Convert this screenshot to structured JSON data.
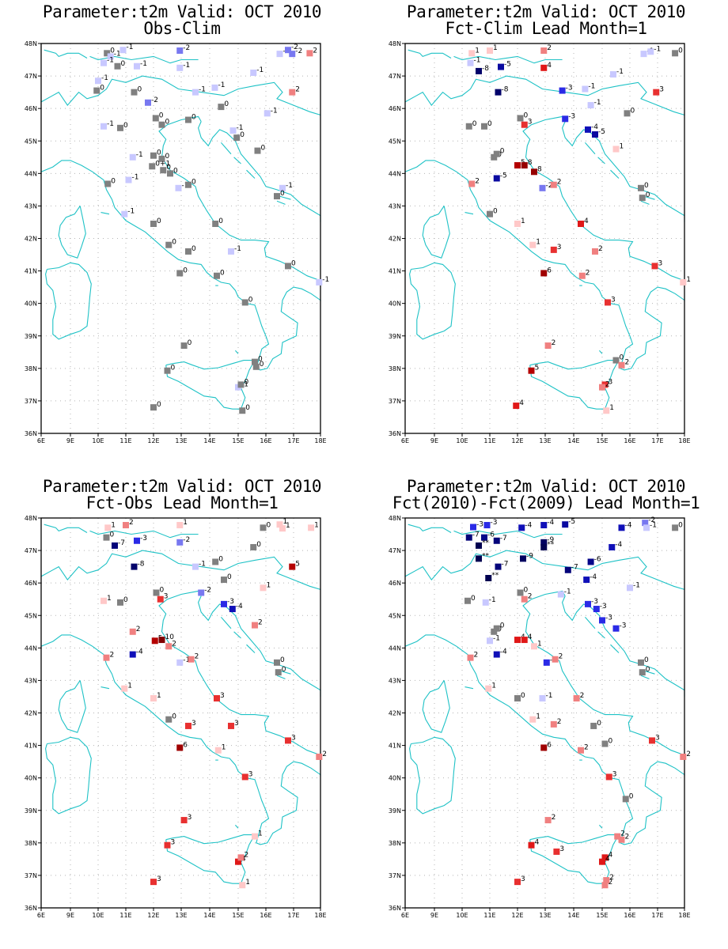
{
  "colors": {
    "coast": "#1ec2c6",
    "frame": "#000000",
    "grid": "#b4b4b4",
    "zero": "#808080",
    "neg": {
      "1": "#c8c8ff",
      "2": "#7878f0",
      "3": "#2a2ae6",
      "4": "#1010b8",
      "5": "#0a0aa0",
      "6": "#06068a",
      "7": "#04047a",
      "8": "#02026a",
      "9": "#000060",
      "**": "#000050"
    },
    "pos": {
      "1": "#ffc8c8",
      "2": "#f08080",
      "3": "#e83030",
      "4": "#e01818",
      "5": "#b40000",
      "6": "#a00000",
      "8": "#960000",
      "10": "#800000"
    }
  },
  "axes": {
    "lon_labels": [
      "6E",
      "9E",
      "10E",
      "11E",
      "12E",
      "13E",
      "14E",
      "15E",
      "16E",
      "17E",
      "18E"
    ],
    "lat_labels": [
      "48N",
      "47N",
      "46N",
      "45N",
      "44N",
      "43N",
      "42N",
      "41N",
      "40N",
      "39N",
      "38N",
      "37N",
      "36N"
    ]
  },
  "panels": [
    {
      "title1": "Parameter:t2m Valid: OCT 2010",
      "title2": "Obs-Clim",
      "stations": [
        [
          10.32,
          47.7,
          "0"
        ],
        [
          10.9,
          47.8,
          "-1"
        ],
        [
          10.45,
          47.6,
          "-1"
        ],
        [
          10.7,
          47.3,
          "0"
        ],
        [
          10.2,
          47.4,
          "-1"
        ],
        [
          11.4,
          47.3,
          "-1"
        ],
        [
          12.95,
          47.78,
          "-2"
        ],
        [
          12.95,
          47.25,
          "-1"
        ],
        [
          16.5,
          47.68,
          "-1"
        ],
        [
          16.8,
          47.8,
          "-2"
        ],
        [
          16.95,
          47.68,
          "-2"
        ],
        [
          17.6,
          47.7,
          "2"
        ],
        [
          15.55,
          47.1,
          "-1"
        ],
        [
          10.0,
          46.85,
          "-1"
        ],
        [
          9.95,
          46.55,
          "0"
        ],
        [
          11.3,
          46.5,
          "0"
        ],
        [
          11.8,
          46.18,
          "-2"
        ],
        [
          13.5,
          46.5,
          "-1"
        ],
        [
          14.18,
          46.64,
          "-1"
        ],
        [
          16.95,
          46.5,
          "2"
        ],
        [
          14.4,
          46.05,
          "0"
        ],
        [
          16.05,
          45.85,
          "-1"
        ],
        [
          10.2,
          45.45,
          "-1"
        ],
        [
          10.8,
          45.4,
          "0"
        ],
        [
          12.08,
          45.7,
          "0"
        ],
        [
          12.3,
          45.5,
          "0"
        ],
        [
          13.25,
          45.65,
          "0"
        ],
        [
          14.82,
          45.32,
          "-1"
        ],
        [
          14.95,
          45.1,
          "0"
        ],
        [
          15.7,
          44.7,
          "0"
        ],
        [
          11.25,
          44.5,
          "-1"
        ],
        [
          12.0,
          44.55,
          "0"
        ],
        [
          12.3,
          44.45,
          "0"
        ],
        [
          11.95,
          44.22,
          "0+1"
        ],
        [
          12.35,
          44.1,
          "0"
        ],
        [
          12.6,
          44.0,
          "0"
        ],
        [
          11.1,
          43.8,
          "-1"
        ],
        [
          10.35,
          43.68,
          "0"
        ],
        [
          12.9,
          43.55,
          "-1"
        ],
        [
          13.25,
          43.65,
          "0"
        ],
        [
          16.6,
          43.55,
          "-1"
        ],
        [
          16.4,
          43.3,
          "0"
        ],
        [
          10.95,
          42.75,
          "-1"
        ],
        [
          12.0,
          42.45,
          "0"
        ],
        [
          14.2,
          42.45,
          "0"
        ],
        [
          12.55,
          41.8,
          "0"
        ],
        [
          13.25,
          41.6,
          "0"
        ],
        [
          14.75,
          41.6,
          "-1"
        ],
        [
          16.8,
          41.15,
          "0"
        ],
        [
          12.95,
          40.93,
          "0"
        ],
        [
          14.25,
          40.85,
          "0"
        ],
        [
          17.95,
          40.65,
          "-1"
        ],
        [
          15.25,
          40.03,
          "0"
        ],
        [
          13.1,
          38.7,
          "0"
        ],
        [
          12.5,
          37.93,
          "0"
        ],
        [
          15.6,
          38.2,
          "0"
        ],
        [
          15.65,
          38.05,
          "0"
        ],
        [
          15.0,
          37.42,
          "-1"
        ],
        [
          15.1,
          37.5,
          "0"
        ],
        [
          12.0,
          36.8,
          "0"
        ],
        [
          15.15,
          36.7,
          "0"
        ]
      ]
    },
    {
      "title1": "Parameter:t2m Valid: OCT 2010",
      "title2": "Fct-Clim Lead Month=1",
      "stations": [
        [
          10.35,
          47.7,
          "1"
        ],
        [
          11.0,
          47.78,
          "1"
        ],
        [
          12.95,
          47.78,
          "2"
        ],
        [
          16.5,
          47.68,
          "-1"
        ],
        [
          16.75,
          47.75,
          "-1"
        ],
        [
          17.65,
          47.7,
          "0"
        ],
        [
          10.3,
          47.4,
          "-1"
        ],
        [
          11.4,
          47.28,
          "-5"
        ],
        [
          10.6,
          47.15,
          "-8"
        ],
        [
          12.95,
          47.25,
          "4"
        ],
        [
          15.4,
          47.05,
          "-1"
        ],
        [
          11.3,
          46.5,
          "-8"
        ],
        [
          13.6,
          46.55,
          "-3"
        ],
        [
          14.4,
          46.6,
          "-1"
        ],
        [
          14.6,
          46.1,
          "-1"
        ],
        [
          16.95,
          46.5,
          "3"
        ],
        [
          15.9,
          45.85,
          "0"
        ],
        [
          10.25,
          45.45,
          "0"
        ],
        [
          10.8,
          45.45,
          "0"
        ],
        [
          12.1,
          45.7,
          "0"
        ],
        [
          12.25,
          45.5,
          "3"
        ],
        [
          13.7,
          45.68,
          "-3"
        ],
        [
          14.5,
          45.35,
          "-4"
        ],
        [
          14.75,
          45.2,
          "-5"
        ],
        [
          15.5,
          44.75,
          "1"
        ],
        [
          11.15,
          44.5,
          "0"
        ],
        [
          11.25,
          44.6,
          "0"
        ],
        [
          12.0,
          44.25,
          "5"
        ],
        [
          12.25,
          44.25,
          "8"
        ],
        [
          12.6,
          44.05,
          "8"
        ],
        [
          10.35,
          43.68,
          "2"
        ],
        [
          11.25,
          43.85,
          "-5"
        ],
        [
          12.9,
          43.55,
          "-2"
        ],
        [
          13.3,
          43.65,
          "2"
        ],
        [
          16.4,
          43.55,
          "0"
        ],
        [
          16.45,
          43.25,
          "0"
        ],
        [
          11.0,
          42.75,
          "0"
        ],
        [
          12.0,
          42.45,
          "1"
        ],
        [
          14.25,
          42.45,
          "4"
        ],
        [
          12.55,
          41.8,
          "1"
        ],
        [
          13.3,
          41.65,
          "3"
        ],
        [
          14.75,
          41.6,
          "2"
        ],
        [
          16.9,
          41.15,
          "3"
        ],
        [
          12.95,
          40.93,
          "6"
        ],
        [
          14.3,
          40.85,
          "2"
        ],
        [
          17.95,
          40.65,
          "1"
        ],
        [
          15.2,
          40.03,
          "3"
        ],
        [
          13.1,
          38.7,
          "2"
        ],
        [
          15.5,
          38.25,
          "0"
        ],
        [
          15.7,
          38.1,
          "2"
        ],
        [
          12.5,
          37.93,
          "5"
        ],
        [
          15.1,
          37.5,
          "3"
        ],
        [
          15.0,
          37.42,
          "2"
        ],
        [
          11.95,
          36.85,
          "4"
        ],
        [
          15.15,
          36.7,
          "1"
        ]
      ]
    },
    {
      "title1": "Parameter:t2m Valid: OCT 2010",
      "title2": "Fct-Obs Lead Month=1",
      "stations": [
        [
          10.35,
          47.7,
          "1"
        ],
        [
          11.0,
          47.78,
          "2"
        ],
        [
          12.95,
          47.78,
          "1"
        ],
        [
          15.9,
          47.7,
          "0"
        ],
        [
          16.5,
          47.8,
          "1"
        ],
        [
          16.6,
          47.68,
          "1"
        ],
        [
          17.65,
          47.7,
          "1"
        ],
        [
          10.3,
          47.4,
          "0"
        ],
        [
          10.6,
          47.15,
          "-7"
        ],
        [
          11.4,
          47.3,
          "-3"
        ],
        [
          12.95,
          47.25,
          "-2"
        ],
        [
          15.55,
          47.1,
          "0"
        ],
        [
          11.3,
          46.5,
          "-8"
        ],
        [
          13.5,
          46.5,
          "-1"
        ],
        [
          14.2,
          46.65,
          "0"
        ],
        [
          14.5,
          46.1,
          "0"
        ],
        [
          16.95,
          46.5,
          "5"
        ],
        [
          10.2,
          45.45,
          "1"
        ],
        [
          10.8,
          45.4,
          "0"
        ],
        [
          12.1,
          45.7,
          "0"
        ],
        [
          12.25,
          45.5,
          "3"
        ],
        [
          13.7,
          45.7,
          "-2"
        ],
        [
          14.5,
          45.35,
          "-3"
        ],
        [
          14.8,
          45.2,
          "-4"
        ],
        [
          15.9,
          45.85,
          "1"
        ],
        [
          15.6,
          44.7,
          "2"
        ],
        [
          11.25,
          44.5,
          "2"
        ],
        [
          12.05,
          44.22,
          "5"
        ],
        [
          12.3,
          44.25,
          "10"
        ],
        [
          12.55,
          44.05,
          "2"
        ],
        [
          10.3,
          43.7,
          "2"
        ],
        [
          11.25,
          43.8,
          "-4"
        ],
        [
          12.95,
          43.55,
          "-1"
        ],
        [
          13.35,
          43.65,
          "2"
        ],
        [
          16.4,
          43.55,
          "0"
        ],
        [
          16.45,
          43.25,
          "0"
        ],
        [
          10.95,
          42.75,
          "1"
        ],
        [
          12.0,
          42.45,
          "1"
        ],
        [
          14.25,
          42.45,
          "3"
        ],
        [
          12.55,
          41.8,
          "0"
        ],
        [
          13.25,
          41.6,
          "3"
        ],
        [
          14.75,
          41.6,
          "3"
        ],
        [
          16.8,
          41.15,
          "3"
        ],
        [
          12.95,
          40.93,
          "6"
        ],
        [
          14.3,
          40.85,
          "1"
        ],
        [
          17.95,
          40.65,
          "2"
        ],
        [
          15.25,
          40.03,
          "3"
        ],
        [
          13.1,
          38.7,
          "3"
        ],
        [
          15.6,
          38.2,
          "1"
        ],
        [
          12.5,
          37.93,
          "3"
        ],
        [
          15.0,
          37.42,
          "4"
        ],
        [
          15.1,
          37.55,
          "2"
        ],
        [
          12.0,
          36.8,
          "3"
        ],
        [
          15.15,
          36.7,
          "1"
        ]
      ]
    },
    {
      "title1": "Parameter:t2m Valid: OCT 2010",
      "title2": "Fct(2010)-Fct(2009) Lead Month=1",
      "stations": [
        [
          10.4,
          47.72,
          "-3"
        ],
        [
          10.9,
          47.78,
          "-3"
        ],
        [
          12.15,
          47.7,
          "-4"
        ],
        [
          12.95,
          47.78,
          "-4"
        ],
        [
          13.7,
          47.8,
          "-5"
        ],
        [
          15.7,
          47.7,
          "-4"
        ],
        [
          16.55,
          47.85,
          "-2"
        ],
        [
          16.6,
          47.7,
          "-1"
        ],
        [
          17.65,
          47.7,
          "0"
        ],
        [
          10.25,
          47.4,
          "-7"
        ],
        [
          10.8,
          47.4,
          "-6"
        ],
        [
          11.25,
          47.3,
          "-7"
        ],
        [
          10.6,
          47.15,
          "**"
        ],
        [
          12.95,
          47.25,
          "-9"
        ],
        [
          12.95,
          47.1,
          "**"
        ],
        [
          15.35,
          47.1,
          "-4"
        ],
        [
          10.6,
          46.75,
          "**"
        ],
        [
          12.2,
          46.75,
          "-9"
        ],
        [
          14.6,
          46.65,
          "-6"
        ],
        [
          11.3,
          46.5,
          "-7"
        ],
        [
          13.8,
          46.4,
          "-7"
        ],
        [
          10.95,
          46.15,
          "**"
        ],
        [
          14.45,
          46.1,
          "-4"
        ],
        [
          13.55,
          45.65,
          "-1"
        ],
        [
          16.0,
          45.85,
          "-1"
        ],
        [
          10.2,
          45.45,
          "0"
        ],
        [
          10.85,
          45.4,
          "-1"
        ],
        [
          12.1,
          45.7,
          "0"
        ],
        [
          12.25,
          45.5,
          "2"
        ],
        [
          14.5,
          45.35,
          "-3"
        ],
        [
          14.8,
          45.2,
          "-3"
        ],
        [
          15.0,
          44.85,
          "-3"
        ],
        [
          15.5,
          44.6,
          "-3"
        ],
        [
          11.15,
          44.5,
          "0"
        ],
        [
          11.25,
          44.6,
          "0"
        ],
        [
          11.0,
          44.22,
          "-1"
        ],
        [
          12.0,
          44.25,
          "4"
        ],
        [
          12.25,
          44.25,
          "4"
        ],
        [
          12.6,
          44.05,
          "1"
        ],
        [
          10.3,
          43.7,
          "2"
        ],
        [
          11.25,
          43.8,
          "-4"
        ],
        [
          13.05,
          43.55,
          "-3"
        ],
        [
          13.35,
          43.65,
          "2"
        ],
        [
          16.4,
          43.55,
          "0"
        ],
        [
          16.45,
          43.25,
          "0"
        ],
        [
          10.95,
          42.75,
          "1"
        ],
        [
          12.0,
          42.45,
          "0"
        ],
        [
          12.9,
          42.45,
          "-1"
        ],
        [
          14.1,
          42.45,
          "2"
        ],
        [
          12.55,
          41.8,
          "1"
        ],
        [
          13.3,
          41.65,
          "2"
        ],
        [
          14.7,
          41.6,
          "0"
        ],
        [
          16.8,
          41.15,
          "3"
        ],
        [
          12.95,
          40.93,
          "6"
        ],
        [
          14.25,
          40.85,
          "2"
        ],
        [
          15.1,
          41.05,
          "0"
        ],
        [
          17.95,
          40.65,
          "2"
        ],
        [
          15.25,
          40.03,
          "3"
        ],
        [
          15.85,
          39.35,
          "0"
        ],
        [
          13.1,
          38.7,
          "2"
        ],
        [
          15.55,
          38.2,
          "2"
        ],
        [
          15.7,
          38.1,
          "2"
        ],
        [
          12.5,
          37.93,
          "4"
        ],
        [
          13.4,
          37.73,
          "3"
        ],
        [
          15.1,
          37.55,
          "4"
        ],
        [
          15.0,
          37.42,
          "4"
        ],
        [
          12.0,
          36.8,
          "3"
        ],
        [
          15.1,
          36.7,
          "2"
        ],
        [
          15.15,
          36.85,
          "2"
        ]
      ]
    }
  ]
}
